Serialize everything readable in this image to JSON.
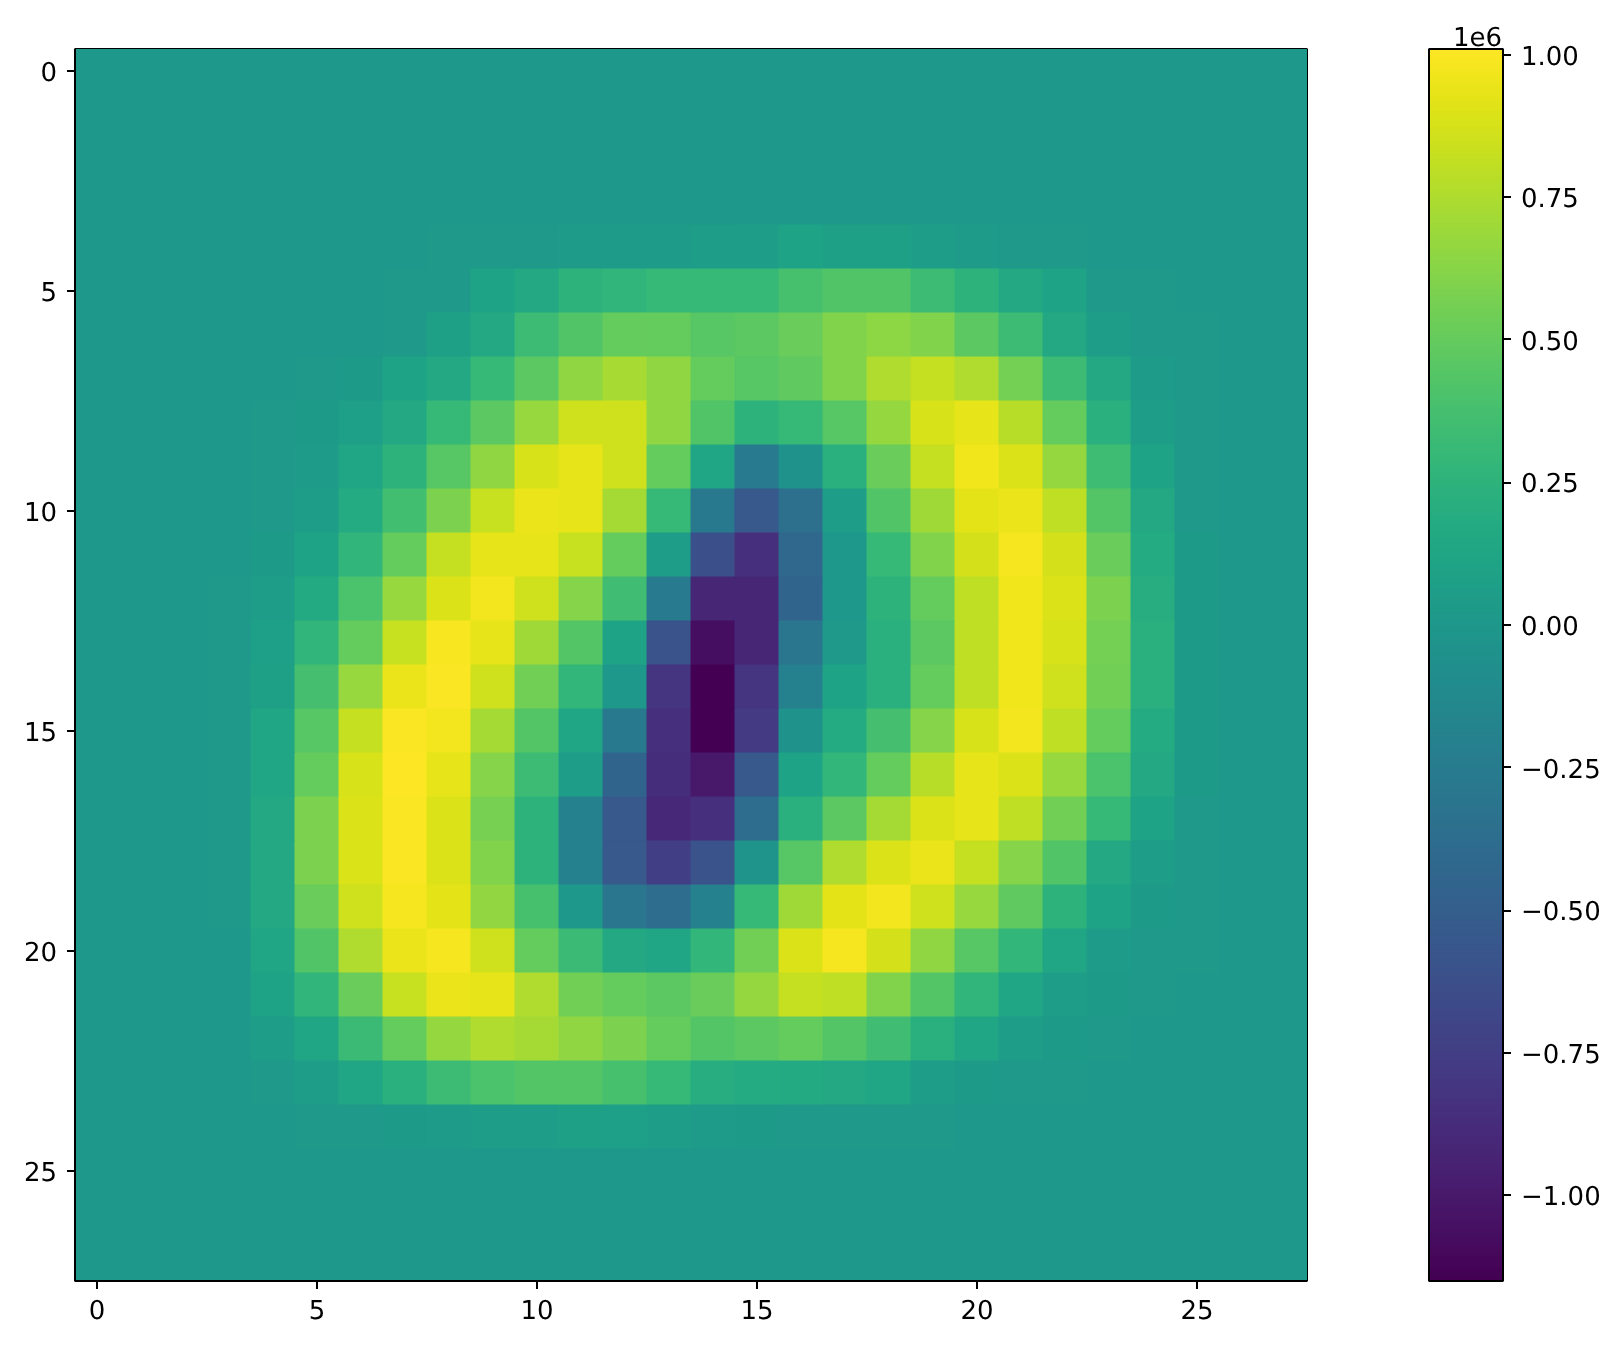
{
  "chart_data": {
    "type": "heatmap",
    "categories": [
      "0",
      null,
      null,
      null,
      null,
      "5",
      null,
      null,
      null,
      null,
      "10",
      null,
      null,
      null,
      null,
      "15",
      null,
      null,
      null,
      null,
      "20",
      null,
      null,
      null,
      null,
      "25",
      null,
      null
    ],
    "y_categories": [
      "0",
      null,
      null,
      null,
      null,
      "5",
      null,
      null,
      null,
      null,
      "10",
      null,
      null,
      null,
      null,
      "15",
      null,
      null,
      null,
      null,
      "20",
      null,
      null,
      null,
      null,
      "25",
      null,
      null
    ],
    "cells": [
      [
        0,
        0,
        0,
        0,
        0,
        0,
        0,
        0,
        0,
        0,
        0,
        0,
        0,
        0,
        0,
        0,
        0,
        0,
        0,
        0,
        0,
        0,
        0,
        0,
        0,
        0,
        0,
        0
      ],
      [
        0,
        0,
        0,
        0,
        0,
        0,
        0,
        0,
        0,
        0,
        0,
        0,
        0,
        0,
        0,
        0,
        0,
        0,
        0,
        0,
        0,
        0,
        0,
        0,
        0,
        0,
        0,
        0
      ],
      [
        0,
        0,
        0,
        0,
        0,
        0,
        0,
        0,
        0,
        0,
        0,
        0,
        0,
        0,
        0,
        0,
        0,
        0,
        0,
        0,
        0,
        0,
        0,
        0,
        0,
        0,
        0,
        0
      ],
      [
        0,
        0,
        0,
        0,
        0,
        0,
        0,
        0,
        0,
        0,
        0,
        0,
        0,
        0,
        0,
        0,
        0,
        0,
        0,
        0,
        0,
        0,
        0,
        0,
        0,
        0,
        0,
        0
      ],
      [
        0,
        0,
        0,
        0,
        0,
        0,
        0,
        0,
        0.02,
        0.02,
        0.02,
        0.04,
        0.04,
        0.04,
        0.05,
        0.06,
        0.1,
        0.08,
        0.08,
        0.06,
        0.04,
        0.02,
        0.01,
        0,
        0,
        0,
        0,
        0
      ],
      [
        0,
        0,
        0,
        0,
        0,
        0,
        0,
        0.01,
        0.02,
        0.1,
        0.15,
        0.25,
        0.27,
        0.3,
        0.3,
        0.3,
        0.38,
        0.42,
        0.42,
        0.33,
        0.25,
        0.15,
        0.1,
        0.02,
        0.01,
        0,
        0,
        0
      ],
      [
        0,
        0,
        0,
        0,
        0,
        0,
        0,
        0.02,
        0.08,
        0.15,
        0.33,
        0.42,
        0.5,
        0.5,
        0.45,
        0.47,
        0.52,
        0.6,
        0.64,
        0.6,
        0.47,
        0.33,
        0.15,
        0.05,
        0.02,
        0.01,
        0,
        0
      ],
      [
        0,
        0,
        0,
        0,
        0,
        0.01,
        0.03,
        0.1,
        0.15,
        0.3,
        0.47,
        0.65,
        0.73,
        0.65,
        0.5,
        0.45,
        0.48,
        0.6,
        0.75,
        0.82,
        0.75,
        0.56,
        0.33,
        0.15,
        0.04,
        0.01,
        0,
        0
      ],
      [
        0,
        0,
        0,
        0,
        0.01,
        0.03,
        0.07,
        0.15,
        0.3,
        0.47,
        0.68,
        0.85,
        0.85,
        0.65,
        0.42,
        0.25,
        0.3,
        0.45,
        0.67,
        0.88,
        0.93,
        0.78,
        0.5,
        0.22,
        0.06,
        0.01,
        0,
        0
      ],
      [
        0,
        0,
        0,
        0,
        0.01,
        0.04,
        0.12,
        0.25,
        0.45,
        0.65,
        0.88,
        0.93,
        0.85,
        0.5,
        0.12,
        -0.25,
        -0.05,
        0.22,
        0.52,
        0.82,
        0.96,
        0.9,
        0.67,
        0.34,
        0.1,
        0.02,
        0,
        0
      ],
      [
        0,
        0,
        0,
        0,
        0.02,
        0.06,
        0.18,
        0.36,
        0.58,
        0.83,
        0.95,
        0.93,
        0.72,
        0.3,
        -0.28,
        -0.55,
        -0.35,
        0.05,
        0.42,
        0.7,
        0.92,
        0.95,
        0.8,
        0.43,
        0.15,
        0.02,
        0,
        0
      ],
      [
        0,
        0,
        0,
        0,
        0.03,
        0.1,
        0.27,
        0.5,
        0.82,
        0.93,
        0.93,
        0.83,
        0.5,
        0.05,
        -0.62,
        -0.85,
        -0.42,
        0,
        0.3,
        0.6,
        0.87,
        0.98,
        0.87,
        0.52,
        0.18,
        0.03,
        0,
        0
      ],
      [
        0,
        0,
        0,
        0.01,
        0.05,
        0.17,
        0.4,
        0.68,
        0.9,
        0.97,
        0.85,
        0.62,
        0.35,
        -0.27,
        -0.92,
        -0.92,
        -0.45,
        0,
        0.25,
        0.5,
        0.8,
        0.96,
        0.9,
        0.58,
        0.2,
        0.03,
        0,
        0
      ],
      [
        0,
        0,
        0,
        0.01,
        0.07,
        0.27,
        0.5,
        0.83,
        0.99,
        0.93,
        0.7,
        0.43,
        0.1,
        -0.6,
        -1.07,
        -0.92,
        -0.3,
        0.02,
        0.22,
        0.47,
        0.8,
        0.96,
        0.88,
        0.56,
        0.22,
        0.03,
        0,
        0
      ],
      [
        0,
        0,
        0,
        0.01,
        0.08,
        0.37,
        0.68,
        0.95,
        1.0,
        0.85,
        0.55,
        0.28,
        0,
        -0.82,
        -1.15,
        -0.82,
        -0.2,
        0.1,
        0.22,
        0.5,
        0.8,
        0.96,
        0.85,
        0.55,
        0.22,
        0.03,
        0,
        0
      ],
      [
        0,
        0,
        0,
        0.01,
        0.12,
        0.45,
        0.82,
        1.0,
        0.97,
        0.72,
        0.43,
        0.13,
        -0.28,
        -0.85,
        -1.15,
        -0.78,
        -0.05,
        0.18,
        0.37,
        0.62,
        0.88,
        0.97,
        0.8,
        0.5,
        0.18,
        0.03,
        0,
        0
      ],
      [
        0,
        0,
        0,
        0.01,
        0.12,
        0.5,
        0.88,
        1.01,
        0.93,
        0.62,
        0.33,
        0.05,
        -0.45,
        -0.87,
        -1.0,
        -0.55,
        0.1,
        0.28,
        0.5,
        0.78,
        0.93,
        0.9,
        0.68,
        0.4,
        0.15,
        0.03,
        0,
        0
      ],
      [
        0,
        0,
        0,
        0.01,
        0.15,
        0.58,
        0.9,
        1.0,
        0.9,
        0.57,
        0.25,
        -0.2,
        -0.55,
        -0.9,
        -0.85,
        -0.38,
        0.22,
        0.47,
        0.72,
        0.9,
        0.93,
        0.8,
        0.55,
        0.3,
        0.1,
        0.02,
        0,
        0
      ],
      [
        0,
        0,
        0,
        0.01,
        0.15,
        0.58,
        0.89,
        1.0,
        0.9,
        0.6,
        0.25,
        -0.2,
        -0.55,
        -0.75,
        -0.6,
        -0.03,
        0.45,
        0.75,
        0.9,
        0.95,
        0.82,
        0.62,
        0.42,
        0.15,
        0.05,
        0.02,
        0,
        0
      ],
      [
        0,
        0,
        0,
        0.01,
        0.15,
        0.52,
        0.85,
        0.98,
        0.92,
        0.66,
        0.38,
        0,
        -0.3,
        -0.38,
        -0.2,
        0.3,
        0.7,
        0.92,
        0.97,
        0.85,
        0.68,
        0.48,
        0.25,
        0.1,
        0.03,
        0.01,
        0,
        0
      ],
      [
        0,
        0,
        0,
        0,
        0.13,
        0.42,
        0.75,
        0.95,
        0.98,
        0.85,
        0.5,
        0.32,
        0.15,
        0.12,
        0.28,
        0.55,
        0.9,
        0.98,
        0.87,
        0.65,
        0.45,
        0.28,
        0.12,
        0.04,
        0.02,
        0.01,
        0,
        0
      ],
      [
        0,
        0,
        0,
        0,
        0.1,
        0.27,
        0.52,
        0.83,
        0.95,
        0.93,
        0.75,
        0.55,
        0.5,
        0.47,
        0.52,
        0.67,
        0.82,
        0.8,
        0.6,
        0.43,
        0.27,
        0.13,
        0.06,
        0.03,
        0.01,
        0,
        0,
        0
      ],
      [
        0,
        0,
        0,
        0,
        0.05,
        0.12,
        0.32,
        0.5,
        0.67,
        0.75,
        0.72,
        0.65,
        0.58,
        0.5,
        0.43,
        0.47,
        0.5,
        0.43,
        0.35,
        0.22,
        0.12,
        0.05,
        0.03,
        0.01,
        0,
        0,
        0,
        0
      ],
      [
        0,
        0,
        0,
        0,
        0.02,
        0.05,
        0.13,
        0.22,
        0.33,
        0.4,
        0.43,
        0.43,
        0.38,
        0.3,
        0.2,
        0.18,
        0.17,
        0.15,
        0.12,
        0.05,
        0.03,
        0.02,
        0.01,
        0,
        0,
        0,
        0,
        0
      ],
      [
        0,
        0,
        0,
        0,
        0,
        0.01,
        0.02,
        0.03,
        0.04,
        0.05,
        0.06,
        0.08,
        0.07,
        0.06,
        0.04,
        0.03,
        0.02,
        0.02,
        0.01,
        0.01,
        0,
        0,
        0,
        0,
        0,
        0,
        0,
        0
      ],
      [
        0,
        0,
        0,
        0,
        0,
        0,
        0,
        0,
        0,
        0,
        0,
        0,
        0,
        0,
        0,
        0,
        0,
        0,
        0,
        0,
        0,
        0,
        0,
        0,
        0,
        0,
        0,
        0
      ],
      [
        0,
        0,
        0,
        0,
        0,
        0,
        0,
        0,
        0,
        0,
        0,
        0,
        0,
        0,
        0,
        0,
        0,
        0,
        0,
        0,
        0,
        0,
        0,
        0,
        0,
        0,
        0,
        0
      ],
      [
        0,
        0,
        0,
        0,
        0,
        0,
        0,
        0,
        0,
        0,
        0,
        0,
        0,
        0,
        0,
        0,
        0,
        0,
        0,
        0,
        0,
        0,
        0,
        0,
        0,
        0,
        0,
        0
      ]
    ],
    "clim": [
      -1.15,
      1.01
    ],
    "cticks": [
      {
        "value": -1,
        "label": "−1.00"
      },
      {
        "value": -0.75,
        "label": "−0.75"
      },
      {
        "value": -0.5,
        "label": "−0.50"
      },
      {
        "value": -0.25,
        "label": "−0.25"
      },
      {
        "value": 0,
        "label": "0.00"
      },
      {
        "value": 0.25,
        "label": "0.25"
      },
      {
        "value": 0.5,
        "label": "0.50"
      },
      {
        "value": 0.75,
        "label": "0.75"
      },
      {
        "value": 1,
        "label": "1.00"
      }
    ],
    "clabel": "1e6"
  }
}
